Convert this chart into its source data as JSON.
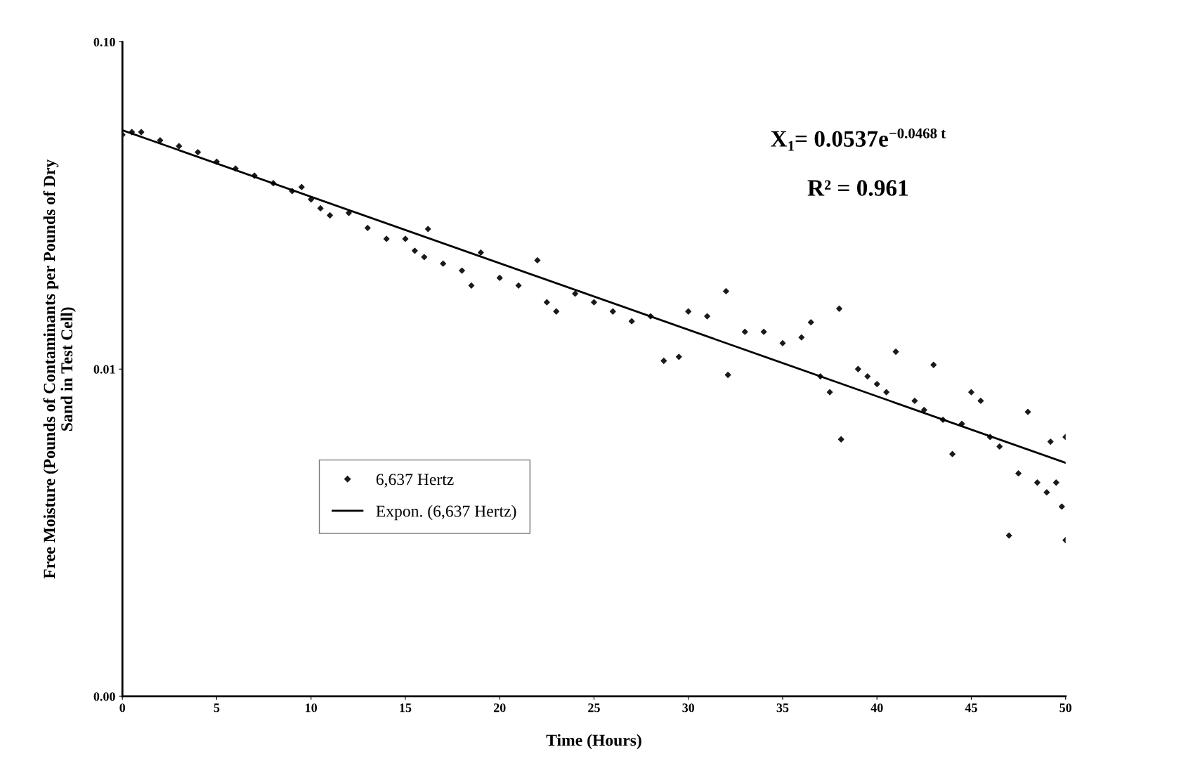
{
  "chart_data": {
    "type": "scatter",
    "xlabel": "Time (Hours)",
    "ylabel": "Free Moisture (Pounds of Contaminants per Pounds of Dry\nSand in Test Cell)",
    "log": "y",
    "xlim": [
      0,
      50
    ],
    "ylim": [
      0.001,
      0.1
    ],
    "xticks": [
      0,
      5,
      10,
      15,
      20,
      25,
      30,
      35,
      40,
      45,
      50
    ],
    "yticks": [
      {
        "value": 0.001,
        "label": "0.00"
      },
      {
        "value": 0.01,
        "label": "0.01"
      },
      {
        "value": 0.1,
        "label": "0.10"
      }
    ],
    "grid": false,
    "legend": "center left",
    "annotations": [
      "X$_{1}$= 0.0537e$^{−0.0468 t}$",
      "R² = 0.961"
    ],
    "series": [
      {
        "name": "6,637 Hertz",
        "marker": "diamond",
        "color": "#1a1a1a",
        "x": [
          0,
          0.5,
          1,
          2,
          3,
          4,
          5,
          6,
          7,
          8,
          9,
          9.5,
          10,
          10.5,
          11,
          12,
          13,
          14,
          15,
          15.5,
          16,
          16.2,
          17,
          18,
          18.5,
          19,
          20,
          21,
          22,
          22.5,
          23,
          24,
          25,
          26,
          27,
          28,
          28.7,
          29.5,
          30,
          31,
          32,
          32.1,
          33,
          34,
          35,
          36,
          36.5,
          37,
          37.5,
          38,
          38.1,
          39,
          39.5,
          40,
          40.5,
          41,
          42,
          42.5,
          43,
          43.5,
          44,
          44.5,
          45,
          45.5,
          46,
          46.5,
          47,
          47.5,
          48,
          48.5,
          49,
          49.2,
          49.5,
          49.8,
          50,
          50
        ],
        "values": [
          0.052,
          0.053,
          0.053,
          0.05,
          0.048,
          0.046,
          0.043,
          0.041,
          0.039,
          0.037,
          0.035,
          0.036,
          0.033,
          0.031,
          0.0295,
          0.03,
          0.027,
          0.025,
          0.025,
          0.023,
          0.022,
          0.0268,
          0.021,
          0.02,
          0.018,
          0.0227,
          0.019,
          0.018,
          0.0215,
          0.016,
          0.015,
          0.017,
          0.016,
          0.015,
          0.014,
          0.0145,
          0.0106,
          0.0109,
          0.015,
          0.0145,
          0.0173,
          0.0096,
          0.013,
          0.013,
          0.012,
          0.0125,
          0.0139,
          0.0095,
          0.0085,
          0.0153,
          0.0061,
          0.01,
          0.0095,
          0.009,
          0.0085,
          0.0113,
          0.008,
          0.0075,
          0.0103,
          0.007,
          0.0055,
          0.0068,
          0.0085,
          0.008,
          0.0062,
          0.0058,
          0.0031,
          0.0048,
          0.0074,
          0.0045,
          0.0042,
          0.006,
          0.0045,
          0.0038,
          0.003,
          0.0062
        ]
      },
      {
        "name": "Expon. (6,637 Hertz)",
        "type": "line",
        "color": "#000000",
        "x": [
          0,
          50
        ],
        "values": [
          0.0537,
          0.00517
        ]
      }
    ]
  }
}
